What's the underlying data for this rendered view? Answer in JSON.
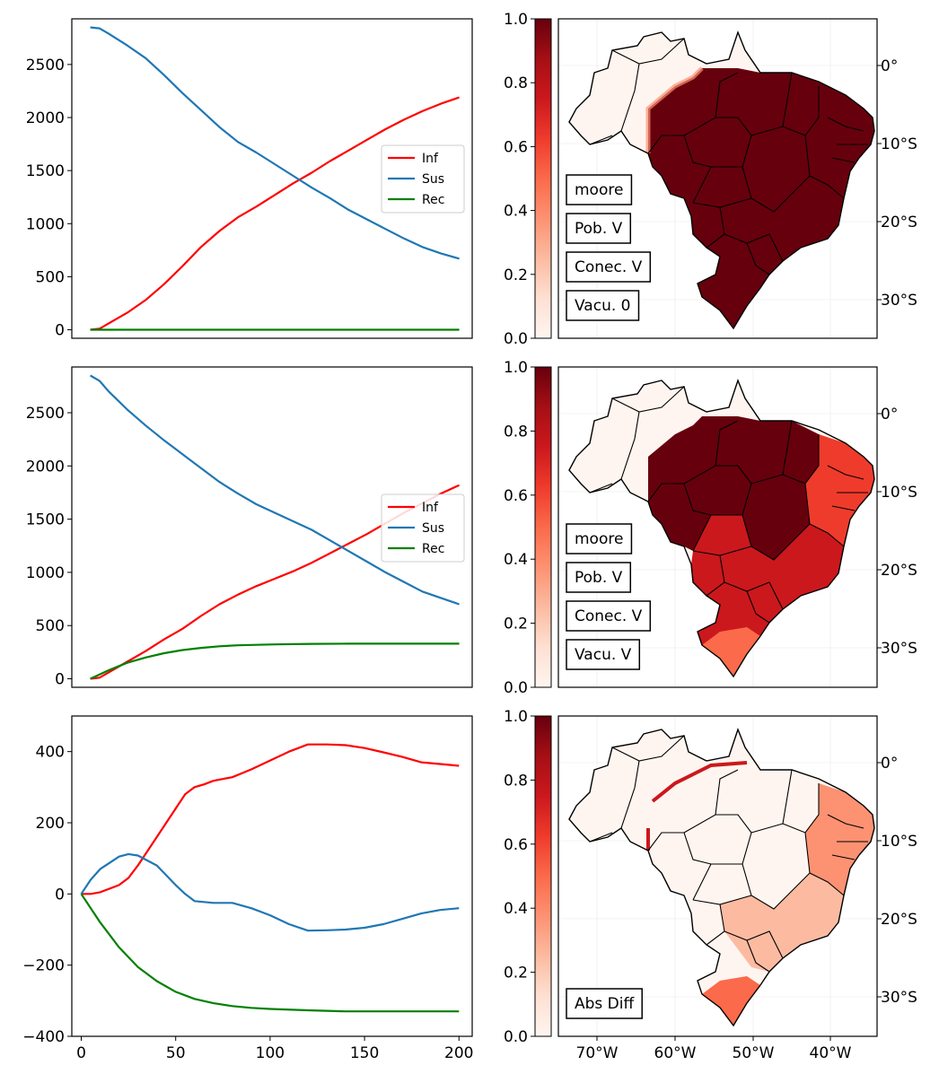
{
  "chart_data": [
    {
      "type": "line",
      "panel": "top-left",
      "yticks": [
        0,
        500,
        1000,
        1500,
        2000,
        2500
      ],
      "ylim": [
        -80,
        2930
      ],
      "xlim": [
        -10,
        207
      ],
      "x_axis_labels_shown": false,
      "legend": {
        "placement": "center-right",
        "entries": [
          "Inf",
          "Sus",
          "Rec"
        ]
      },
      "series": [
        {
          "name": "Inf",
          "color": "#ff0000",
          "x": [
            0,
            5,
            10,
            20,
            30,
            40,
            50,
            60,
            70,
            80,
            90,
            100,
            110,
            120,
            130,
            140,
            150,
            160,
            170,
            180,
            190,
            200
          ],
          "y": [
            0,
            10,
            60,
            160,
            280,
            430,
            600,
            780,
            930,
            1060,
            1160,
            1270,
            1380,
            1480,
            1590,
            1690,
            1790,
            1890,
            1980,
            2060,
            2130,
            2190
          ]
        },
        {
          "name": "Sus",
          "color": "#1f77b4",
          "x": [
            0,
            5,
            10,
            20,
            30,
            40,
            50,
            60,
            70,
            80,
            90,
            100,
            110,
            120,
            130,
            140,
            150,
            160,
            170,
            180,
            190,
            200
          ],
          "y": [
            2850,
            2840,
            2790,
            2680,
            2560,
            2400,
            2230,
            2070,
            1910,
            1770,
            1670,
            1560,
            1450,
            1340,
            1240,
            1130,
            1040,
            950,
            860,
            780,
            720,
            670
          ]
        },
        {
          "name": "Rec",
          "color": "#008000",
          "x": [
            0,
            50,
            100,
            150,
            200
          ],
          "y": [
            0,
            0,
            0,
            0,
            0
          ]
        }
      ]
    },
    {
      "type": "line",
      "panel": "middle-left",
      "yticks": [
        0,
        500,
        1000,
        1500,
        2000,
        2500
      ],
      "ylim": [
        -80,
        2930
      ],
      "xlim": [
        -10,
        207
      ],
      "x_axis_labels_shown": false,
      "legend": {
        "placement": "center-right",
        "entries": [
          "Inf",
          "Sus",
          "Rec"
        ]
      },
      "series": [
        {
          "name": "Inf",
          "color": "#ff0000",
          "x": [
            0,
            5,
            10,
            20,
            30,
            40,
            50,
            60,
            70,
            80,
            90,
            100,
            110,
            120,
            130,
            140,
            150,
            160,
            170,
            180,
            190,
            200
          ],
          "y": [
            0,
            10,
            60,
            160,
            260,
            370,
            470,
            590,
            700,
            790,
            870,
            940,
            1010,
            1090,
            1180,
            1270,
            1360,
            1460,
            1560,
            1650,
            1740,
            1820
          ]
        },
        {
          "name": "Sus",
          "color": "#1f77b4",
          "x": [
            0,
            5,
            10,
            20,
            30,
            40,
            50,
            60,
            70,
            80,
            90,
            100,
            110,
            120,
            130,
            140,
            150,
            160,
            170,
            180,
            190,
            200
          ],
          "y": [
            2850,
            2800,
            2700,
            2530,
            2380,
            2240,
            2110,
            1980,
            1850,
            1740,
            1640,
            1560,
            1480,
            1400,
            1300,
            1200,
            1100,
            1000,
            910,
            820,
            760,
            700
          ]
        },
        {
          "name": "Rec",
          "color": "#008000",
          "x": [
            0,
            10,
            20,
            30,
            40,
            50,
            60,
            70,
            80,
            100,
            120,
            140,
            160,
            180,
            200
          ],
          "y": [
            0,
            80,
            150,
            200,
            240,
            270,
            290,
            305,
            315,
            323,
            328,
            330,
            330,
            330,
            330
          ]
        }
      ]
    },
    {
      "type": "line",
      "panel": "bottom-left",
      "xticks": [
        0,
        50,
        100,
        150,
        200
      ],
      "yticks": [
        -400,
        -200,
        0,
        200,
        400
      ],
      "ylim": [
        -400,
        500
      ],
      "xlim": [
        -5,
        207
      ],
      "series": [
        {
          "name": "Inf",
          "color": "#ff0000",
          "x": [
            0,
            5,
            10,
            20,
            25,
            30,
            40,
            50,
            55,
            60,
            65,
            70,
            80,
            90,
            100,
            110,
            120,
            130,
            140,
            150,
            160,
            170,
            180,
            190,
            200
          ],
          "y": [
            0,
            0,
            5,
            25,
            45,
            80,
            160,
            240,
            280,
            300,
            308,
            318,
            328,
            350,
            375,
            400,
            420,
            420,
            418,
            410,
            398,
            385,
            370,
            365,
            360
          ]
        },
        {
          "name": "Sus",
          "color": "#1f77b4",
          "x": [
            0,
            5,
            10,
            20,
            25,
            30,
            40,
            50,
            55,
            60,
            70,
            80,
            90,
            100,
            110,
            120,
            130,
            140,
            150,
            160,
            170,
            180,
            190,
            200
          ],
          "y": [
            0,
            40,
            70,
            105,
            112,
            108,
            80,
            25,
            0,
            -20,
            -25,
            -25,
            -40,
            -60,
            -85,
            -103,
            -102,
            -100,
            -95,
            -85,
            -70,
            -55,
            -45,
            -40
          ]
        },
        {
          "name": "Rec",
          "color": "#008000",
          "x": [
            0,
            10,
            20,
            30,
            40,
            50,
            60,
            70,
            80,
            90,
            100,
            120,
            140,
            160,
            180,
            200
          ],
          "y": [
            0,
            -80,
            -150,
            -205,
            -245,
            -275,
            -295,
            -307,
            -315,
            -320,
            -323,
            -327,
            -330,
            -330,
            -330,
            -330
          ]
        }
      ]
    },
    {
      "type": "heatmap",
      "panel": "top-right",
      "colormap": "Reds",
      "colorbar_ticks": [
        "0.0",
        "0.2",
        "0.4",
        "0.6",
        "0.8",
        "1.0"
      ],
      "lat_ticks": [
        "0°",
        "10°S",
        "20°S",
        "30°S"
      ],
      "labels": [
        "moore",
        "Pob. V",
        "Conec. V",
        "Vacu. 0"
      ],
      "description_levels": {
        "north_west": 0.05,
        "central_east_south": 1.0
      }
    },
    {
      "type": "heatmap",
      "panel": "middle-right",
      "colormap": "Reds",
      "colorbar_ticks": [
        "0.0",
        "0.2",
        "0.4",
        "0.6",
        "0.8",
        "1.0"
      ],
      "lat_ticks": [
        "0°",
        "10°S",
        "20°S",
        "30°S"
      ],
      "labels": [
        "moore",
        "Pob. V",
        "Conec. V",
        "Vacu. V"
      ],
      "description_levels": {
        "north_west": 0.05,
        "center_west": 1.0,
        "northeast": 0.6,
        "southeast_south": 0.75
      }
    },
    {
      "type": "heatmap",
      "panel": "bottom-right",
      "colormap": "Reds",
      "colorbar_ticks": [
        "0.0",
        "0.2",
        "0.4",
        "0.6",
        "0.8",
        "1.0"
      ],
      "lat_ticks": [
        "0°",
        "10°S",
        "20°S",
        "30°S"
      ],
      "lon_ticks": [
        "70°W",
        "60°W",
        "50°W",
        "40°W"
      ],
      "labels": [
        "Abs Diff"
      ],
      "description_levels": {
        "north_west": 0.02,
        "center_west": 0.02,
        "northeast": 0.45,
        "southeast_south": 0.3
      }
    }
  ]
}
